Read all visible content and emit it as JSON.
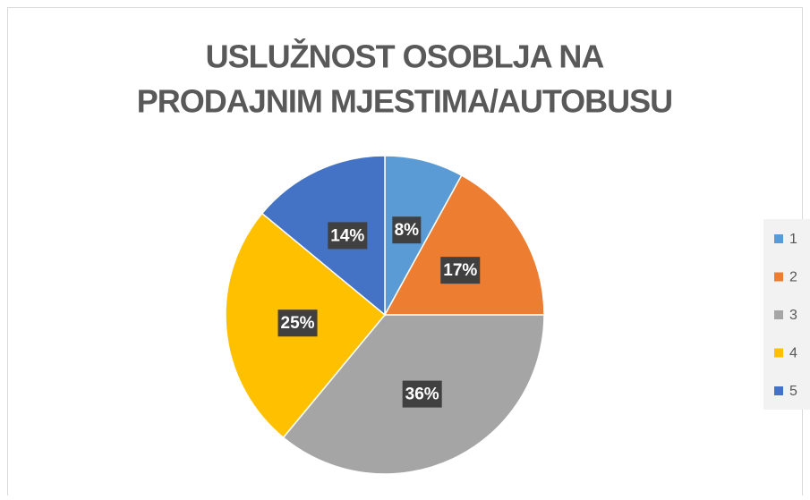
{
  "chart_data": {
    "type": "pie",
    "title": [
      "USLUŽNOST OSOBLJA NA",
      "PRODAJNIM MJESTIMA/AUTOBUSU"
    ],
    "categories": [
      "1",
      "2",
      "3",
      "4",
      "5"
    ],
    "values": [
      8,
      17,
      36,
      25,
      14
    ],
    "value_labels": [
      "8%",
      "17%",
      "36%",
      "25%",
      "14%"
    ],
    "colors": [
      "#5b9bd5",
      "#ed7d31",
      "#a5a5a5",
      "#ffc000",
      "#4472c4"
    ],
    "legend": "right"
  }
}
